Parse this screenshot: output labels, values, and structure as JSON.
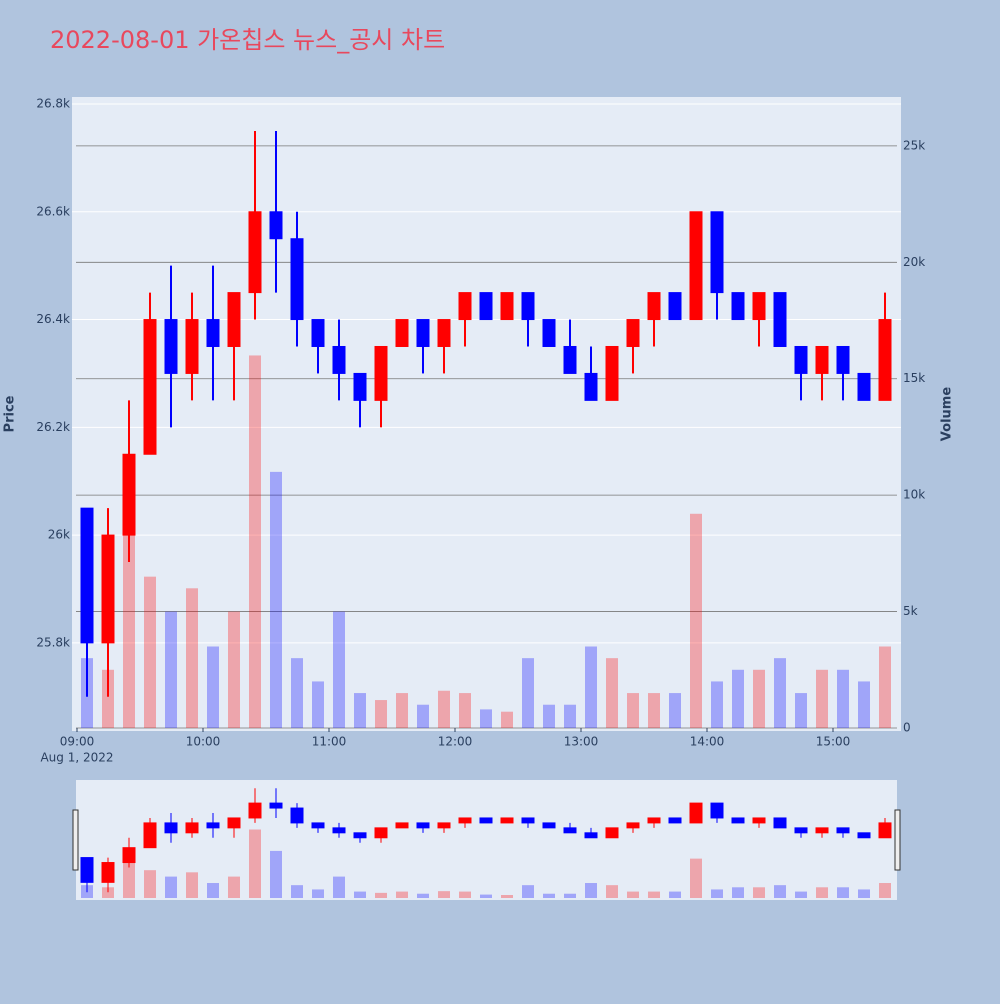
{
  "chart_data": {
    "type": "candlestick",
    "title": "2022-08-01 가온칩스 뉴스_공시 차트",
    "yaxis_title": "Price",
    "y2axis_title": "Volume",
    "x_date_label": "Aug 1, 2022",
    "x": [
      "09:00",
      "09:10",
      "09:20",
      "09:30",
      "09:40",
      "09:50",
      "10:00",
      "10:10",
      "10:20",
      "10:30",
      "10:40",
      "10:50",
      "11:00",
      "11:10",
      "11:20",
      "11:30",
      "11:40",
      "11:50",
      "12:00",
      "12:10",
      "12:20",
      "12:30",
      "12:40",
      "12:50",
      "13:00",
      "13:10",
      "13:20",
      "13:30",
      "13:40",
      "13:50",
      "14:00",
      "14:10",
      "14:20",
      "14:30",
      "14:40",
      "14:50",
      "15:00",
      "15:10",
      "15:20"
    ],
    "open": [
      26050,
      25800,
      26000,
      26150,
      26400,
      26300,
      26400,
      26350,
      26450,
      26600,
      26550,
      26400,
      26350,
      26300,
      26250,
      26350,
      26400,
      26350,
      26400,
      26450,
      26400,
      26450,
      26400,
      26350,
      26300,
      26250,
      26350,
      26400,
      26450,
      26400,
      26600,
      26450,
      26400,
      26450,
      26350,
      26300,
      26350,
      26300,
      26250
    ],
    "high": [
      26050,
      26050,
      26250,
      26450,
      26500,
      26450,
      26500,
      26450,
      26750,
      26750,
      26600,
      26400,
      26400,
      26300,
      26350,
      26400,
      26400,
      26400,
      26450,
      26450,
      26450,
      26450,
      26400,
      26400,
      26350,
      26350,
      26400,
      26450,
      26450,
      26600,
      26600,
      26450,
      26450,
      26450,
      26350,
      26350,
      26350,
      26300,
      26450
    ],
    "low": [
      25700,
      25700,
      25950,
      26150,
      26200,
      26250,
      26250,
      26250,
      26400,
      26450,
      26350,
      26300,
      26250,
      26200,
      26200,
      26350,
      26300,
      26300,
      26350,
      26400,
      26400,
      26350,
      26350,
      26300,
      26250,
      26250,
      26300,
      26350,
      26400,
      26400,
      26400,
      26400,
      26350,
      26350,
      26250,
      26250,
      26250,
      26250,
      26250
    ],
    "close": [
      25800,
      26000,
      26150,
      26400,
      26300,
      26400,
      26350,
      26450,
      26600,
      26550,
      26400,
      26350,
      26300,
      26250,
      26350,
      26400,
      26350,
      26400,
      26450,
      26400,
      26450,
      26400,
      26350,
      26300,
      26250,
      26350,
      26400,
      26450,
      26400,
      26600,
      26450,
      26400,
      26450,
      26350,
      26300,
      26350,
      26300,
      26250,
      26400
    ],
    "volume": [
      3000,
      2500,
      9000,
      6500,
      5000,
      6000,
      3500,
      5000,
      16000,
      11000,
      3000,
      2000,
      5000,
      1500,
      1200,
      1500,
      1000,
      1600,
      1500,
      800,
      700,
      3000,
      1000,
      1000,
      3500,
      3000,
      1500,
      1500,
      1500,
      9200,
      2000,
      2500,
      2500,
      3000,
      1500,
      2500,
      2500,
      2000,
      3500
    ],
    "increasing_color": "#ff0000",
    "decreasing_color": "#0000ff",
    "xlim": [
      "09:00",
      "15:30"
    ],
    "xticks": [
      "09:00",
      "10:00",
      "11:00",
      "12:00",
      "13:00",
      "14:00",
      "15:00"
    ],
    "ylim": [
      25642,
      26813
    ],
    "yticks": [
      {
        "value": 25800,
        "label": "25.8k"
      },
      {
        "value": 26000,
        "label": "26k"
      },
      {
        "value": 26200,
        "label": "26.2k"
      },
      {
        "value": 26400,
        "label": "26.4k"
      },
      {
        "value": 26600,
        "label": "26.6k"
      },
      {
        "value": 26800,
        "label": "26.8k"
      }
    ],
    "y2lim": [
      0,
      27100
    ],
    "y2ticks": [
      0,
      {
        "value": 5000,
        "label": "5k"
      },
      {
        "value": 10000,
        "label": "10k"
      },
      {
        "value": 15000,
        "label": "15k"
      },
      {
        "value": 20000,
        "label": "20k"
      },
      {
        "value": 25000,
        "label": "25k"
      }
    ]
  }
}
